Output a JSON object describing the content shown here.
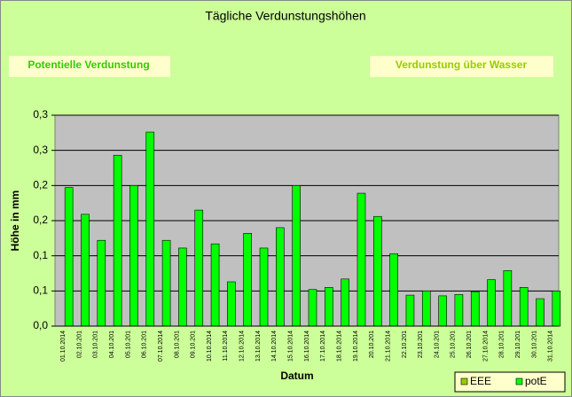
{
  "chart_data": {
    "type": "bar",
    "title": "Tägliche Verdunstungshöhen",
    "annotations": [
      "Potentielle Verdunstung",
      "Verdunstung über Wasser"
    ],
    "xlabel": "Datum",
    "ylabel": "Höhe in mm",
    "categories": [
      "01.10.2014",
      "02.10.201",
      "03.10.201",
      "04.10.201",
      "05.10.201",
      "06.10.201",
      "07.10.2014",
      "08.10.201",
      "09.10.201",
      "10.10.2014",
      "11.10.2014",
      "12.10.2014",
      "13.10.2014",
      "14.10.2014",
      "15.10.2014",
      "16.10.2014",
      "17.10.2014",
      "18.10.2014",
      "19.10.2014",
      "20.10.201",
      "21.10.2014",
      "22.10.201",
      "23.10.201",
      "24.10.201",
      "25.10.201",
      "26.10.201",
      "27.10.2014",
      "28.10.201",
      "29.10.201",
      "30.10.201",
      "31.10.2014"
    ],
    "series": [
      {
        "name": "EEE",
        "color": "#99cc00",
        "values": [
          null,
          null,
          null,
          null,
          null,
          null,
          null,
          null,
          null,
          null,
          null,
          null,
          null,
          null,
          null,
          null,
          null,
          null,
          null,
          null,
          null,
          null,
          null,
          null,
          null,
          null,
          null,
          null,
          null,
          null,
          null
        ]
      },
      {
        "name": "potE",
        "color": "#00ff00",
        "values": [
          0.197,
          0.159,
          0.122,
          0.243,
          0.2,
          0.276,
          0.122,
          0.111,
          0.165,
          0.117,
          0.063,
          0.132,
          0.111,
          0.14,
          0.2,
          0.052,
          0.055,
          0.067,
          0.189,
          0.156,
          0.103,
          0.044,
          0.05,
          0.043,
          0.045,
          0.049,
          0.066,
          0.079,
          0.055,
          0.039,
          0.05
        ]
      }
    ],
    "ylim": [
      0,
      0.3
    ],
    "yticks": [
      {
        "value": 0,
        "label": "0,0"
      },
      {
        "value": 0.05,
        "label": "0,1"
      },
      {
        "value": 0.1,
        "label": "0,1"
      },
      {
        "value": 0.15,
        "label": "0,2"
      },
      {
        "value": 0.2,
        "label": "0,2"
      },
      {
        "value": 0.25,
        "label": "0,3"
      },
      {
        "value": 0.3,
        "label": "0,3"
      }
    ],
    "grid": true,
    "legend": "bottom-right"
  }
}
